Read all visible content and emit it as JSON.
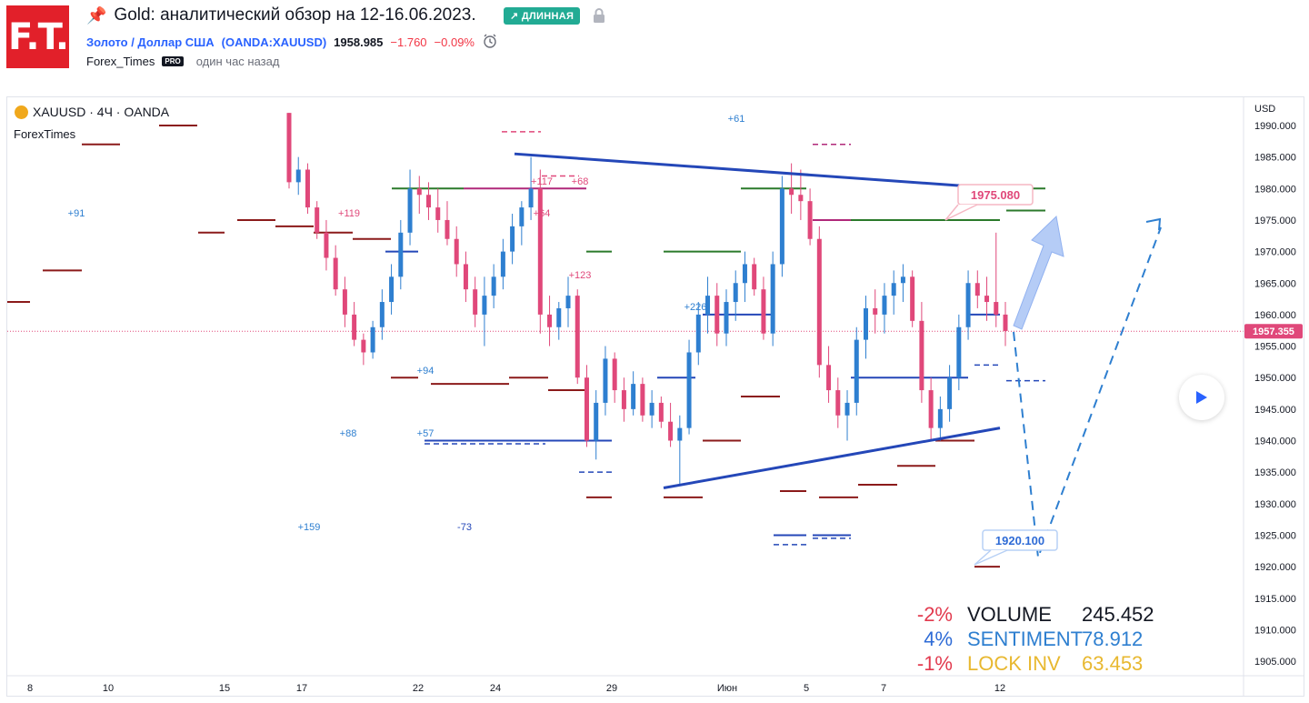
{
  "header": {
    "logo_text": "F.T.",
    "title": "Gold: аналитический обзор на 12-16.06.2023.",
    "badge": "↗ ДЛИННАЯ",
    "instrument_name": "Золото / Доллар США",
    "instrument_ticker": "(OANDA:XAUUSD)",
    "price": "1958.985",
    "change": "−1.760",
    "change_pct": "−0.09%",
    "author": "Forex_Times",
    "author_badge": "PRO",
    "posted": "один час назад"
  },
  "chart": {
    "symbol_line": "XAUUSD · 4Ч · OANDA",
    "watermark": "ForexTimes",
    "currency": "USD"
  },
  "chart_data": {
    "type": "candlestick",
    "symbol": "XAUUSD",
    "timeframe": "4Ч",
    "ylim": [
      1901,
      1992
    ],
    "y_ticks": [
      "1990.000",
      "1985.000",
      "1980.000",
      "1975.000",
      "1970.000",
      "1965.000",
      "1960.000",
      "1955.000",
      "1950.000",
      "1945.000",
      "1940.000",
      "1935.000",
      "1930.000",
      "1925.000",
      "1920.000",
      "1915.000",
      "1910.000",
      "1905.000"
    ],
    "x_ticks": [
      "8",
      "10",
      "15",
      "17",
      "22",
      "24",
      "29",
      "Июн",
      "5",
      "7",
      "12"
    ],
    "current_price": "1957.355",
    "target_up_label": "1975.080",
    "target_down_label": "1920.100",
    "triangle": {
      "upper": [
        [
          1985.5,
          "24"
        ],
        [
          1980.0,
          "12"
        ]
      ],
      "lower": [
        [
          1932.5,
          "31"
        ],
        [
          1942.0,
          "12"
        ]
      ]
    },
    "candles": [
      [
        1992,
        1992,
        1980,
        1981
      ],
      [
        1981,
        1985,
        1979,
        1983
      ],
      [
        1983,
        1984,
        1976,
        1977
      ],
      [
        1977,
        1978,
        1972,
        1973
      ],
      [
        1973,
        1975,
        1967,
        1969
      ],
      [
        1969,
        1971,
        1963,
        1964
      ],
      [
        1964,
        1966,
        1958,
        1960
      ],
      [
        1960,
        1962,
        1955,
        1956
      ],
      [
        1956,
        1957,
        1952,
        1954
      ],
      [
        1954,
        1959,
        1953,
        1958
      ],
      [
        1958,
        1964,
        1956,
        1962
      ],
      [
        1962,
        1968,
        1960,
        1966
      ],
      [
        1966,
        1975,
        1964,
        1973
      ],
      [
        1973,
        1983,
        1971,
        1980
      ],
      [
        1980,
        1982,
        1976,
        1979
      ],
      [
        1979,
        1981,
        1975,
        1977
      ],
      [
        1977,
        1980,
        1973,
        1975
      ],
      [
        1975,
        1978,
        1971,
        1972
      ],
      [
        1972,
        1974,
        1966,
        1968
      ],
      [
        1968,
        1970,
        1962,
        1964
      ],
      [
        1964,
        1966,
        1958,
        1960
      ],
      [
        1960,
        1966,
        1955,
        1963
      ],
      [
        1963,
        1968,
        1961,
        1966
      ],
      [
        1966,
        1972,
        1964,
        1970
      ],
      [
        1970,
        1976,
        1968,
        1974
      ],
      [
        1974,
        1978,
        1971,
        1977
      ],
      [
        1977,
        1985,
        1975,
        1980
      ],
      [
        1980,
        1983,
        1957,
        1960
      ],
      [
        1960,
        1963,
        1955,
        1958
      ],
      [
        1958,
        1962,
        1956,
        1961
      ],
      [
        1961,
        1966,
        1958,
        1963
      ],
      [
        1963,
        1964,
        1949,
        1950
      ],
      [
        1950,
        1952,
        1939,
        1940
      ],
      [
        1940,
        1948,
        1937,
        1946
      ],
      [
        1946,
        1955,
        1944,
        1953
      ],
      [
        1953,
        1954,
        1946,
        1948
      ],
      [
        1948,
        1950,
        1943,
        1945
      ],
      [
        1945,
        1951,
        1944,
        1949
      ],
      [
        1949,
        1950,
        1943,
        1944
      ],
      [
        1944,
        1948,
        1942,
        1946
      ],
      [
        1946,
        1947,
        1942,
        1943
      ],
      [
        1943,
        1946,
        1939,
        1940
      ],
      [
        1940,
        1944,
        1933,
        1942
      ],
      [
        1942,
        1956,
        1941,
        1954
      ],
      [
        1954,
        1962,
        1952,
        1960
      ],
      [
        1960,
        1966,
        1957,
        1963
      ],
      [
        1963,
        1965,
        1955,
        1957
      ],
      [
        1957,
        1964,
        1955,
        1962
      ],
      [
        1962,
        1967,
        1959,
        1965
      ],
      [
        1965,
        1970,
        1962,
        1968
      ],
      [
        1968,
        1969,
        1963,
        1964
      ],
      [
        1964,
        1966,
        1956,
        1957
      ],
      [
        1957,
        1970,
        1955,
        1968
      ],
      [
        1968,
        1982,
        1966,
        1980
      ],
      [
        1980,
        1984,
        1976,
        1979
      ],
      [
        1979,
        1983,
        1975,
        1978
      ],
      [
        1978,
        1980,
        1971,
        1972
      ],
      [
        1972,
        1974,
        1950,
        1952
      ],
      [
        1952,
        1955,
        1946,
        1948
      ],
      [
        1948,
        1950,
        1942,
        1944
      ],
      [
        1944,
        1948,
        1940,
        1946
      ],
      [
        1946,
        1958,
        1944,
        1956
      ],
      [
        1956,
        1963,
        1953,
        1961
      ],
      [
        1961,
        1964,
        1957,
        1960
      ],
      [
        1960,
        1965,
        1957,
        1963
      ],
      [
        1963,
        1967,
        1960,
        1965
      ],
      [
        1965,
        1968,
        1962,
        1966
      ],
      [
        1966,
        1967,
        1958,
        1959
      ],
      [
        1959,
        1962,
        1946,
        1948
      ],
      [
        1948,
        1950,
        1940,
        1942
      ],
      [
        1942,
        1947,
        1940,
        1945
      ],
      [
        1945,
        1952,
        1943,
        1950
      ],
      [
        1950,
        1960,
        1948,
        1958
      ],
      [
        1958,
        1967,
        1956,
        1965
      ],
      [
        1965,
        1967,
        1961,
        1963
      ],
      [
        1963,
        1966,
        1959,
        1962
      ],
      [
        1962,
        1973,
        1958,
        1960
      ],
      [
        1960,
        1962,
        1955,
        1957.4
      ]
    ]
  },
  "stats": [
    {
      "pct": "-2%",
      "name": "VOLUME",
      "value": "245.452",
      "color": "#e23a4e",
      "name_color": "#131722",
      "value_color": "#131722"
    },
    {
      "pct": "4%",
      "name": "SENTIMENT",
      "value": "78.912",
      "color": "#2e6bd6",
      "name_color": "#2e7fd0",
      "value_color": "#2e7fd0"
    },
    {
      "pct": "-1%",
      "name": "LOCK INV",
      "value": "63.453",
      "color": "#e23a4e",
      "name_color": "#e8b830",
      "value_color": "#e8b830"
    }
  ],
  "markers": [
    "+91",
    "+119",
    "+117",
    "+68",
    "+64",
    "+123",
    "+61",
    "+94",
    "+88",
    "+57",
    "+159",
    "-73",
    "+226"
  ],
  "colors": {
    "up": "#2e7fd0",
    "down": "#e0487a",
    "trend": "#2447b8",
    "resistance": "#2b7a2b",
    "level": "#8b1a1a"
  }
}
